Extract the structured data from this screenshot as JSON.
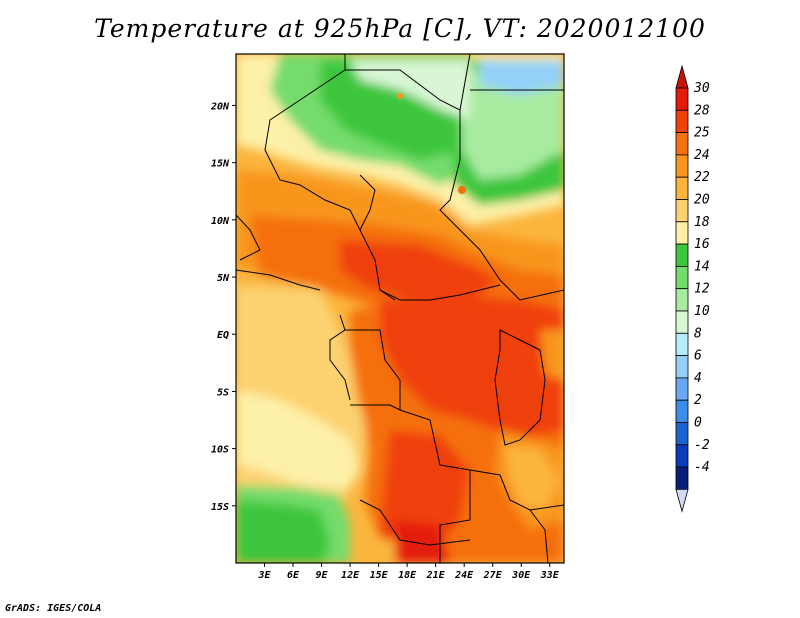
{
  "title": "Temperature at 925hPa [C], VT: 2020012100",
  "credit": "GrADS: IGES/COLA",
  "map": {
    "lon_range": [
      0,
      34.5
    ],
    "lat_range": [
      -20,
      24.5
    ],
    "lat_ticks": [
      {
        "value": 20,
        "label": "20N"
      },
      {
        "value": 15,
        "label": "15N"
      },
      {
        "value": 10,
        "label": "10N"
      },
      {
        "value": 5,
        "label": "5N"
      },
      {
        "value": 0,
        "label": "EQ"
      },
      {
        "value": -5,
        "label": "5S"
      },
      {
        "value": -10,
        "label": "10S"
      },
      {
        "value": -15,
        "label": "15S"
      }
    ],
    "lon_ticks": [
      {
        "value": 3,
        "label": "3E"
      },
      {
        "value": 6,
        "label": "6E"
      },
      {
        "value": 9,
        "label": "9E"
      },
      {
        "value": 12,
        "label": "12E"
      },
      {
        "value": 15,
        "label": "15E"
      },
      {
        "value": 18,
        "label": "18E"
      },
      {
        "value": 21,
        "label": "21E"
      },
      {
        "value": 24,
        "label": "24E"
      },
      {
        "value": 27,
        "label": "27E"
      },
      {
        "value": 30,
        "label": "30E"
      },
      {
        "value": 33,
        "label": "33E"
      }
    ]
  },
  "colorbar": {
    "levels": [
      {
        "label": "30",
        "color": "#e41a0a"
      },
      {
        "label": "28",
        "color": "#f0410a"
      },
      {
        "label": "25",
        "color": "#f5700f"
      },
      {
        "label": "24",
        "color": "#f8961c"
      },
      {
        "label": "22",
        "color": "#fbb53e"
      },
      {
        "label": "20",
        "color": "#fcd271"
      },
      {
        "label": "18",
        "color": "#fdf0a8"
      },
      {
        "label": "16",
        "color": "#3cc63c"
      },
      {
        "label": "14",
        "color": "#74dc6c"
      },
      {
        "label": "12",
        "color": "#a8eba0"
      },
      {
        "label": "10",
        "color": "#d8f6d4"
      },
      {
        "label": "8",
        "color": "#b4ecfa"
      },
      {
        "label": "6",
        "color": "#94d0f8"
      },
      {
        "label": "4",
        "color": "#6aa8f2"
      },
      {
        "label": "2",
        "color": "#3c8cea"
      },
      {
        "label": "0",
        "color": "#1c64d6"
      },
      {
        "label": "-2",
        "color": "#0a3cbc"
      },
      {
        "label": "-4",
        "color": "#081e78"
      }
    ],
    "top_color": "#c8140a",
    "bottom_color": "#d4d8f6"
  }
}
